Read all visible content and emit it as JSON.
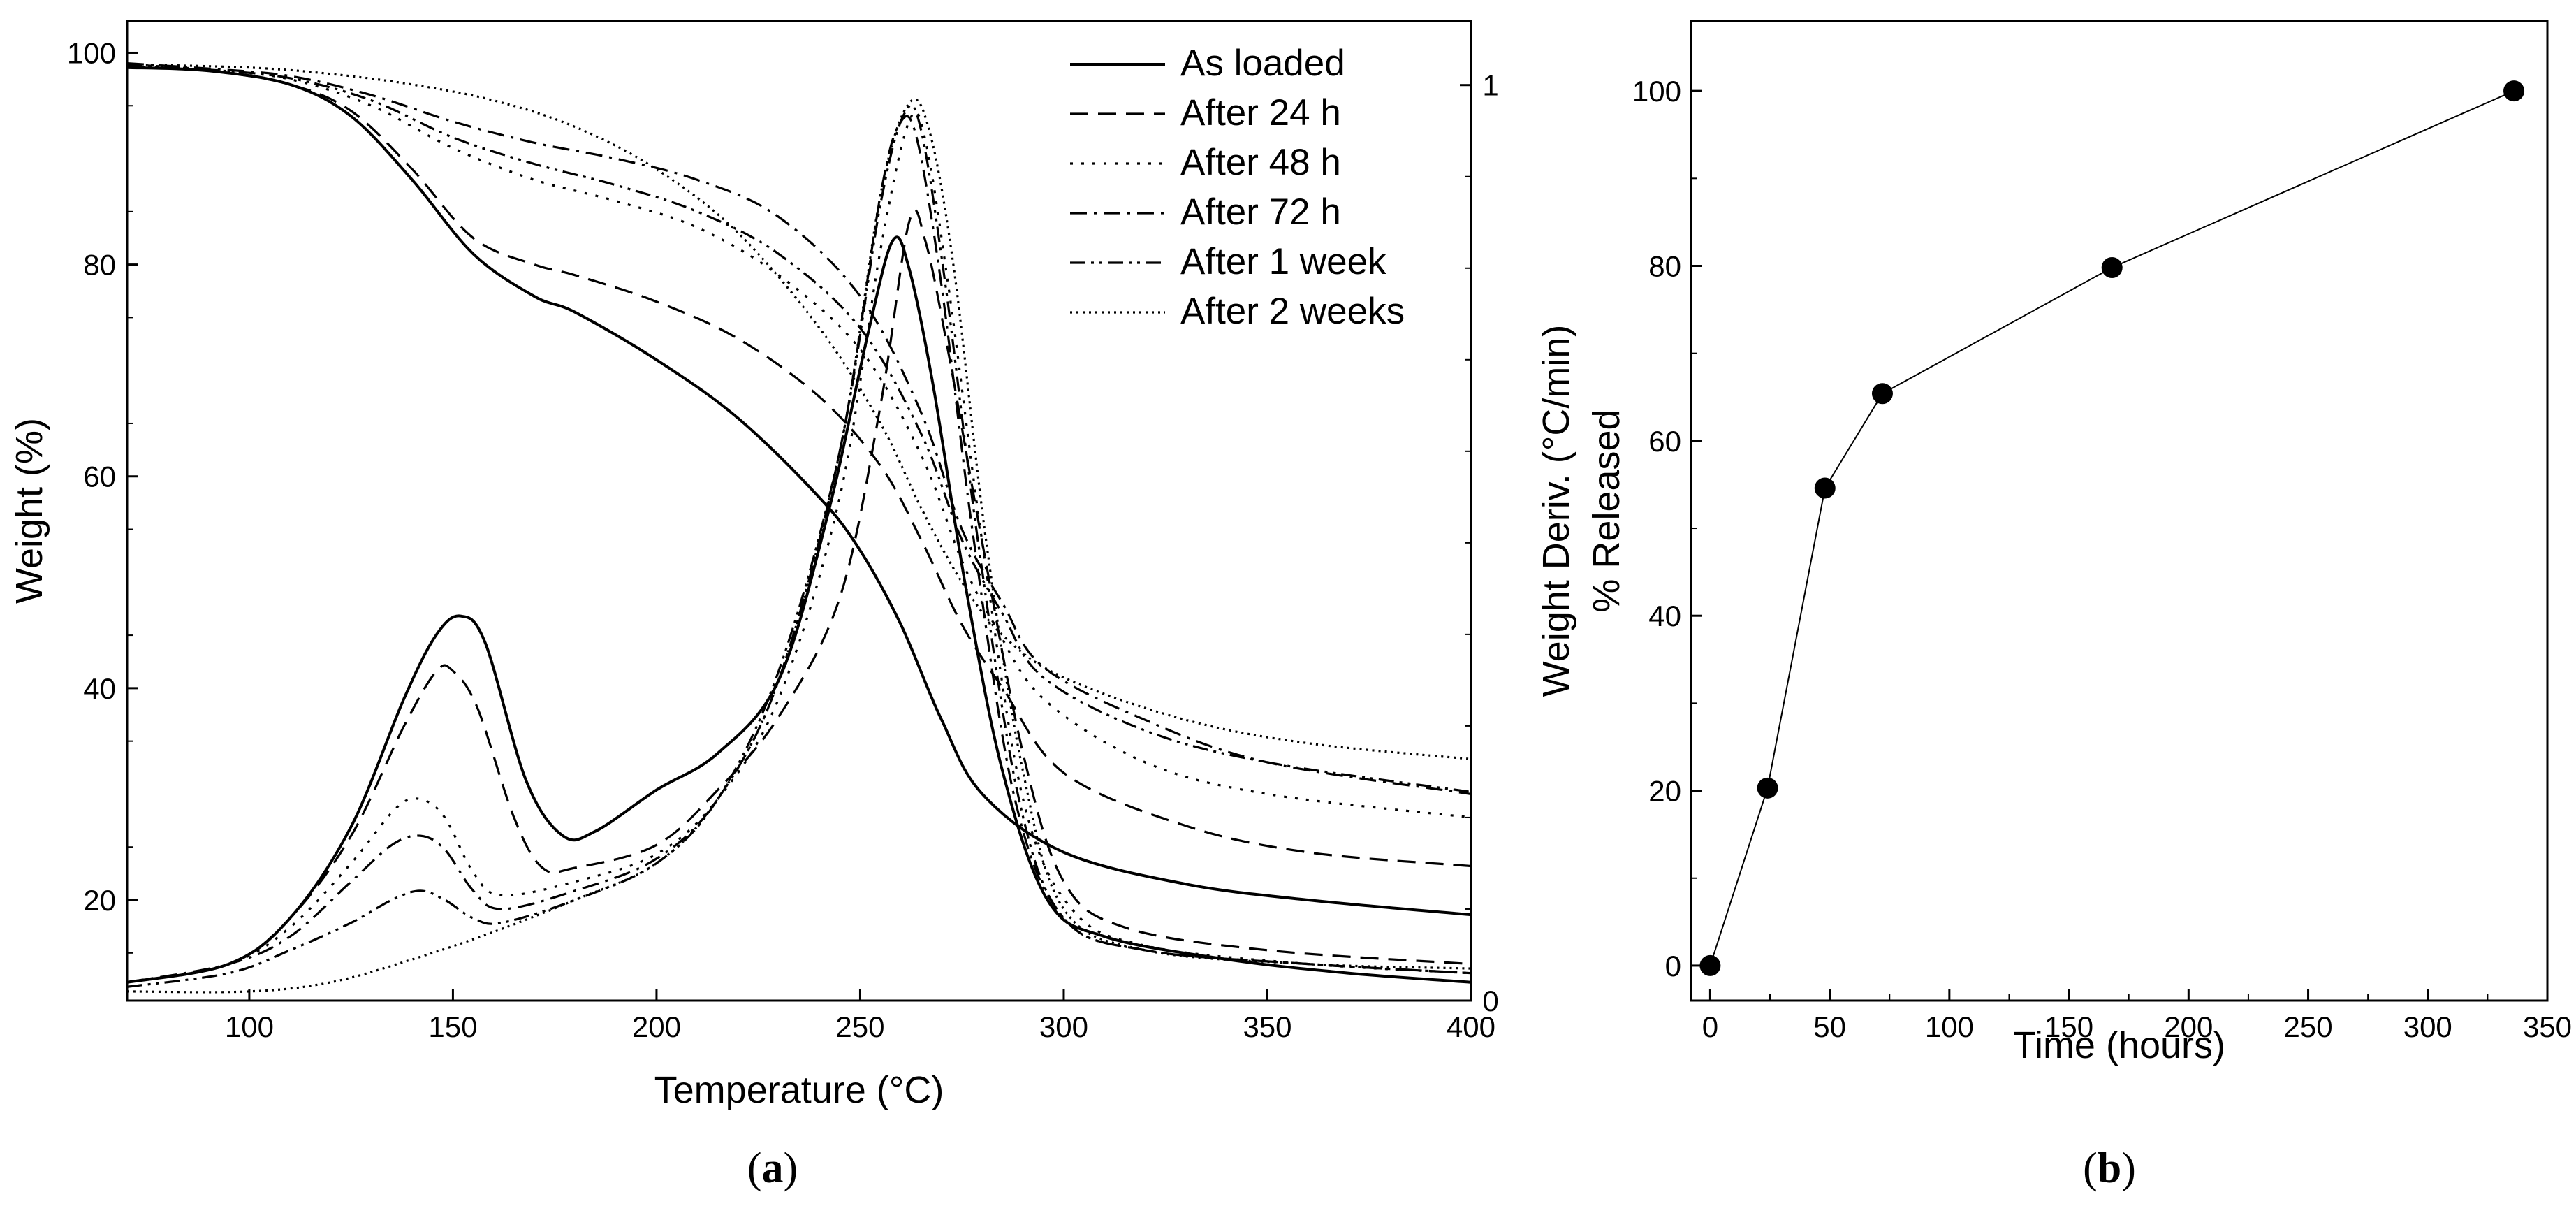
{
  "panels": {
    "a": {
      "open": "(",
      "letter": "a",
      "close": ")"
    },
    "b": {
      "open": "(",
      "letter": "b",
      "close": ")"
    }
  },
  "chart_data": [
    {
      "type": "line",
      "id": "a",
      "title": "",
      "xlabel": "Temperature (°C)",
      "ylabel": "Weight (%)",
      "y2label": "Weight Deriv. (°C/min)",
      "xlim": [
        70,
        400
      ],
      "ylim": [
        10.5,
        103
      ],
      "y2lim": [
        0,
        1.07
      ],
      "xticks": [
        100,
        150,
        200,
        250,
        300,
        350,
        400
      ],
      "yticks": [
        20,
        40,
        60,
        80,
        100
      ],
      "y2ticks": [
        0,
        1
      ],
      "legend_position": "top-right",
      "series": [
        {
          "name": "As loaded",
          "dash": "solid",
          "weight": [
            [
              70,
              98.6
            ],
            [
              90,
              98.3
            ],
            [
              110,
              97
            ],
            [
              125,
              94
            ],
            [
              140,
              88
            ],
            [
              155,
              81
            ],
            [
              170,
              77
            ],
            [
              180,
              75.5
            ],
            [
              200,
              71
            ],
            [
              220,
              65.5
            ],
            [
              240,
              58
            ],
            [
              250,
              53
            ],
            [
              260,
              46
            ],
            [
              270,
              37
            ],
            [
              280,
              30
            ],
            [
              300,
              24.5
            ],
            [
              330,
              21.5
            ],
            [
              360,
              20
            ],
            [
              400,
              18.6
            ]
          ],
          "deriv": [
            [
              70,
              0.02
            ],
            [
              95,
              0.04
            ],
            [
              110,
              0.09
            ],
            [
              125,
              0.19
            ],
            [
              138,
              0.33
            ],
            [
              146,
              0.4
            ],
            [
              152,
              0.42
            ],
            [
              158,
              0.39
            ],
            [
              168,
              0.24
            ],
            [
              177,
              0.18
            ],
            [
              185,
              0.185
            ],
            [
              200,
              0.23
            ],
            [
              215,
              0.27
            ],
            [
              230,
              0.35
            ],
            [
              242,
              0.53
            ],
            [
              252,
              0.73
            ],
            [
              258,
              0.83
            ],
            [
              262,
              0.8
            ],
            [
              268,
              0.67
            ],
            [
              276,
              0.45
            ],
            [
              285,
              0.25
            ],
            [
              296,
              0.11
            ],
            [
              310,
              0.07
            ],
            [
              340,
              0.045
            ],
            [
              370,
              0.03
            ],
            [
              400,
              0.02
            ]
          ]
        },
        {
          "name": "After 24 h",
          "dash": "dashed",
          "weight": [
            [
              70,
              98.7
            ],
            [
              90,
              98.3
            ],
            [
              110,
              97
            ],
            [
              125,
              94.5
            ],
            [
              140,
              89
            ],
            [
              155,
              82.5
            ],
            [
              170,
              80
            ],
            [
              180,
              79
            ],
            [
              200,
              76.5
            ],
            [
              220,
              73
            ],
            [
              240,
              67.5
            ],
            [
              255,
              61
            ],
            [
              265,
              54
            ],
            [
              275,
              46
            ],
            [
              285,
              40
            ],
            [
              300,
              32
            ],
            [
              330,
              27
            ],
            [
              360,
              24.5
            ],
            [
              400,
              23.2
            ]
          ],
          "deriv": [
            [
              70,
              0.02
            ],
            [
              95,
              0.04
            ],
            [
              110,
              0.09
            ],
            [
              125,
              0.18
            ],
            [
              138,
              0.3
            ],
            [
              146,
              0.36
            ],
            [
              150,
              0.36
            ],
            [
              156,
              0.32
            ],
            [
              165,
              0.2
            ],
            [
              172,
              0.145
            ],
            [
              180,
              0.145
            ],
            [
              200,
              0.17
            ],
            [
              215,
              0.23
            ],
            [
              230,
              0.31
            ],
            [
              245,
              0.44
            ],
            [
              255,
              0.65
            ],
            [
              262,
              0.85
            ],
            [
              266,
              0.83
            ],
            [
              272,
              0.7
            ],
            [
              280,
              0.5
            ],
            [
              290,
              0.27
            ],
            [
              300,
              0.13
            ],
            [
              315,
              0.08
            ],
            [
              350,
              0.055
            ],
            [
              400,
              0.04
            ]
          ]
        },
        {
          "name": "After 48 h",
          "dash": "dotted",
          "weight": [
            [
              70,
              98.8
            ],
            [
              90,
              98.4
            ],
            [
              110,
              97.5
            ],
            [
              130,
              95
            ],
            [
              150,
              91
            ],
            [
              170,
              88
            ],
            [
              190,
              86
            ],
            [
              210,
              83.5
            ],
            [
              230,
              79
            ],
            [
              250,
              72
            ],
            [
              265,
              62
            ],
            [
              275,
              52
            ],
            [
              283,
              46
            ],
            [
              295,
              39
            ],
            [
              320,
              33
            ],
            [
              350,
              30
            ],
            [
              400,
              27.8
            ]
          ],
          "deriv": [
            [
              70,
              0.02
            ],
            [
              95,
              0.04
            ],
            [
              110,
              0.08
            ],
            [
              125,
              0.15
            ],
            [
              136,
              0.21
            ],
            [
              142,
              0.22
            ],
            [
              148,
              0.2
            ],
            [
              155,
              0.14
            ],
            [
              162,
              0.115
            ],
            [
              180,
              0.13
            ],
            [
              200,
              0.16
            ],
            [
              215,
              0.22
            ],
            [
              230,
              0.33
            ],
            [
              245,
              0.55
            ],
            [
              255,
              0.82
            ],
            [
              262,
              0.96
            ],
            [
              266,
              0.94
            ],
            [
              272,
              0.77
            ],
            [
              280,
              0.5
            ],
            [
              290,
              0.22
            ],
            [
              302,
              0.1
            ],
            [
              320,
              0.06
            ],
            [
              360,
              0.04
            ],
            [
              400,
              0.03
            ]
          ]
        },
        {
          "name": "After 72 h",
          "dash": "dashdot",
          "weight": [
            [
              70,
              99
            ],
            [
              90,
              98.5
            ],
            [
              110,
              97.8
            ],
            [
              130,
              96
            ],
            [
              150,
              93.5
            ],
            [
              170,
              91.5
            ],
            [
              190,
              90
            ],
            [
              210,
              88
            ],
            [
              230,
              84.5
            ],
            [
              250,
              77
            ],
            [
              265,
              66
            ],
            [
              275,
              55
            ],
            [
              285,
              48
            ],
            [
              295,
              42
            ],
            [
              320,
              37
            ],
            [
              350,
              33
            ],
            [
              400,
              30
            ]
          ],
          "deriv": [
            [
              70,
              0.02
            ],
            [
              95,
              0.04
            ],
            [
              110,
              0.07
            ],
            [
              125,
              0.13
            ],
            [
              135,
              0.17
            ],
            [
              142,
              0.18
            ],
            [
              148,
              0.165
            ],
            [
              155,
              0.12
            ],
            [
              162,
              0.1
            ],
            [
              180,
              0.12
            ],
            [
              200,
              0.155
            ],
            [
              215,
              0.22
            ],
            [
              230,
              0.35
            ],
            [
              245,
              0.6
            ],
            [
              255,
              0.88
            ],
            [
              260,
              0.96
            ],
            [
              264,
              0.94
            ],
            [
              270,
              0.78
            ],
            [
              278,
              0.5
            ],
            [
              288,
              0.22
            ],
            [
              300,
              0.09
            ],
            [
              320,
              0.055
            ],
            [
              360,
              0.04
            ],
            [
              400,
              0.03
            ]
          ]
        },
        {
          "name": "After 1 week",
          "dash": "dashdotdot",
          "weight": [
            [
              70,
              98.9
            ],
            [
              90,
              98.4
            ],
            [
              110,
              97.6
            ],
            [
              130,
              95.5
            ],
            [
              150,
              92
            ],
            [
              170,
              89.5
            ],
            [
              190,
              87.5
            ],
            [
              210,
              85
            ],
            [
              230,
              81
            ],
            [
              250,
              74
            ],
            [
              265,
              64
            ],
            [
              275,
              54
            ],
            [
              285,
              47
            ],
            [
              295,
              41
            ],
            [
              320,
              36
            ],
            [
              350,
              33
            ],
            [
              400,
              30.2
            ]
          ],
          "deriv": [
            [
              70,
              0.015
            ],
            [
              95,
              0.03
            ],
            [
              110,
              0.055
            ],
            [
              125,
              0.085
            ],
            [
              135,
              0.11
            ],
            [
              142,
              0.12
            ],
            [
              148,
              0.11
            ],
            [
              155,
              0.09
            ],
            [
              162,
              0.085
            ],
            [
              180,
              0.11
            ],
            [
              200,
              0.15
            ],
            [
              215,
              0.22
            ],
            [
              230,
              0.36
            ],
            [
              245,
              0.6
            ],
            [
              255,
              0.87
            ],
            [
              261,
              0.97
            ],
            [
              265,
              0.95
            ],
            [
              271,
              0.78
            ],
            [
              279,
              0.5
            ],
            [
              289,
              0.22
            ],
            [
              300,
              0.09
            ],
            [
              320,
              0.055
            ],
            [
              360,
              0.04
            ],
            [
              400,
              0.03
            ]
          ]
        },
        {
          "name": "After 2 weeks",
          "dash": "fine-dotted",
          "weight": [
            [
              70,
              98.9
            ],
            [
              100,
              98.6
            ],
            [
              120,
              98
            ],
            [
              140,
              97
            ],
            [
              160,
              95.5
            ],
            [
              180,
              93
            ],
            [
              200,
              89
            ],
            [
              220,
              83
            ],
            [
              240,
              74
            ],
            [
              255,
              65
            ],
            [
              265,
              57
            ],
            [
              275,
              50
            ],
            [
              285,
              45
            ],
            [
              300,
              41
            ],
            [
              330,
              37
            ],
            [
              360,
              34.8
            ],
            [
              400,
              33.3
            ]
          ],
          "deriv": [
            [
              70,
              0.01
            ],
            [
              100,
              0.01
            ],
            [
              120,
              0.02
            ],
            [
              140,
              0.045
            ],
            [
              160,
              0.075
            ],
            [
              180,
              0.11
            ],
            [
              200,
              0.15
            ],
            [
              215,
              0.22
            ],
            [
              230,
              0.35
            ],
            [
              245,
              0.6
            ],
            [
              255,
              0.88
            ],
            [
              262,
              0.98
            ],
            [
              267,
              0.95
            ],
            [
              273,
              0.8
            ],
            [
              281,
              0.5
            ],
            [
              290,
              0.25
            ],
            [
              300,
              0.1
            ],
            [
              320,
              0.055
            ],
            [
              360,
              0.04
            ],
            [
              400,
              0.035
            ]
          ]
        }
      ]
    },
    {
      "type": "line",
      "id": "b",
      "title": "",
      "xlabel": "Time (hours)",
      "ylabel": "% Released",
      "xlim": [
        -8,
        350
      ],
      "ylim": [
        -4,
        108
      ],
      "xticks": [
        0,
        50,
        100,
        150,
        200,
        250,
        300,
        350
      ],
      "yticks": [
        0,
        20,
        40,
        60,
        80,
        100
      ],
      "markers": "filled-circle",
      "series": [
        {
          "name": "% Released",
          "x": [
            0,
            24,
            48,
            72,
            168,
            336
          ],
          "y": [
            0,
            20.3,
            54.6,
            65.4,
            79.8,
            100
          ]
        }
      ]
    }
  ]
}
